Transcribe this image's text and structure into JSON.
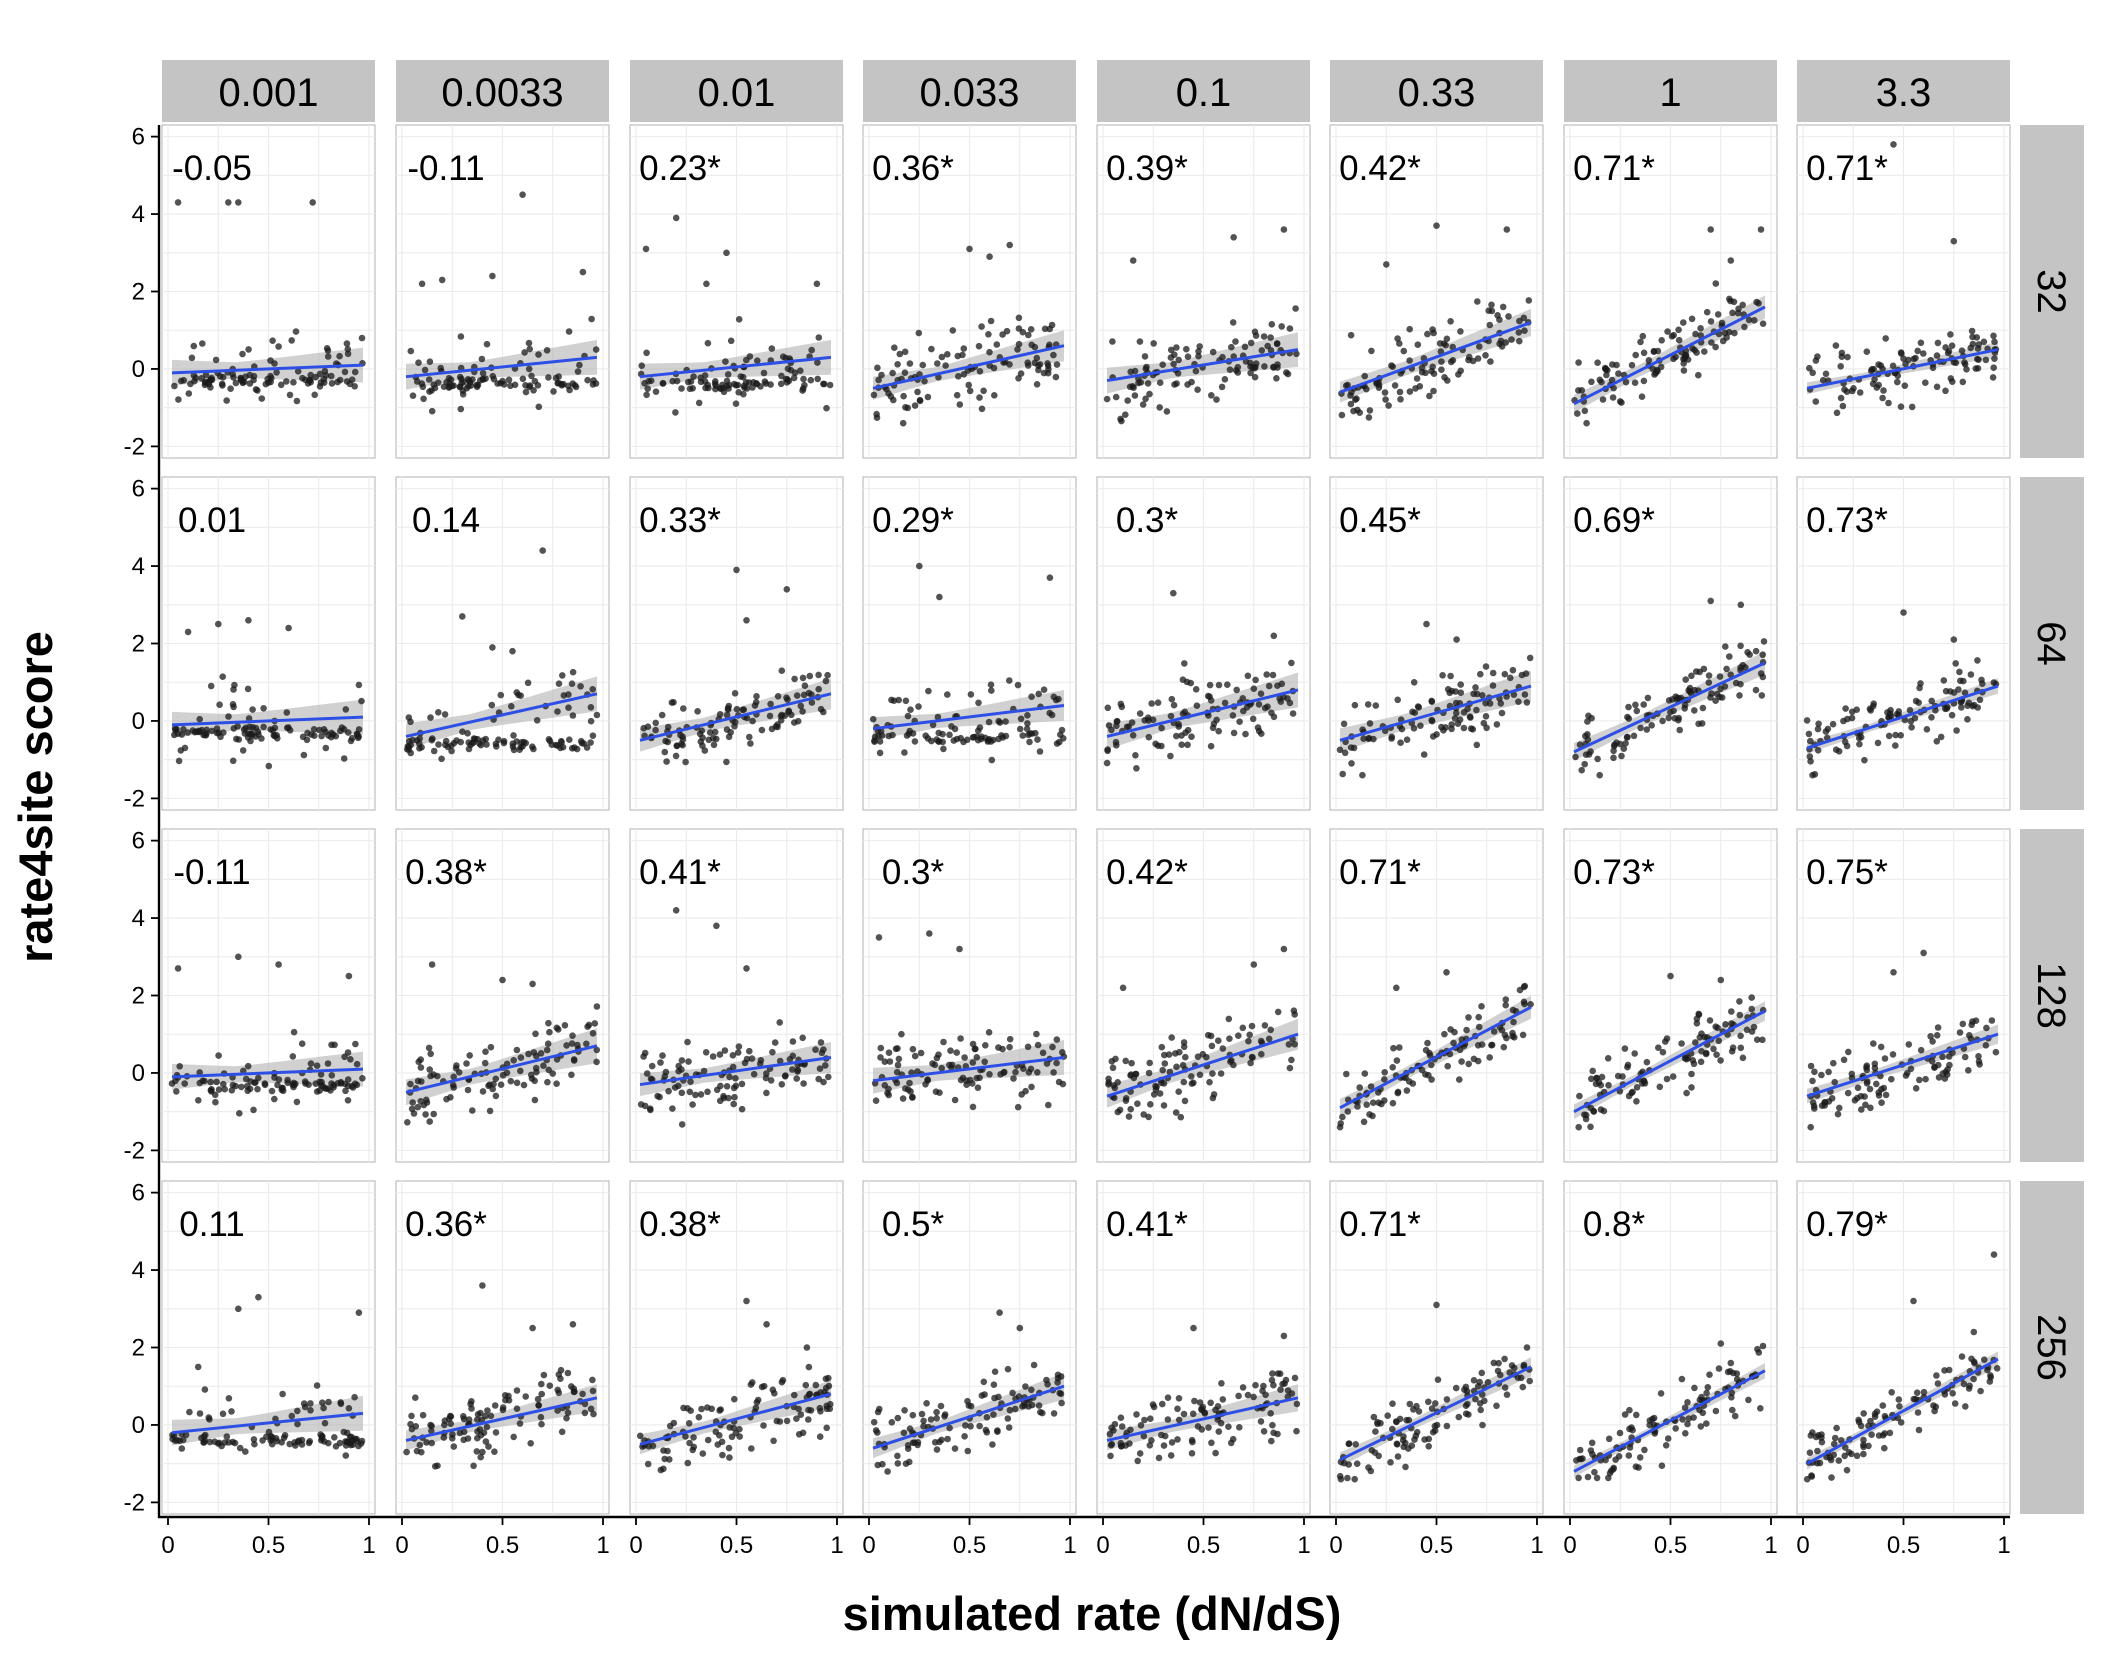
{
  "chart_data": {
    "type": "scatter",
    "facets": "grid",
    "xlabel": "simulated rate (dN/dS)",
    "ylabel": "rate4site score",
    "xlim": [
      0,
      1
    ],
    "ylim": [
      -2.3,
      6.3
    ],
    "xticks": [
      0,
      0.5,
      1
    ],
    "xtick_labels": [
      "0",
      "0.5",
      "1"
    ],
    "yticks": [
      -2,
      0,
      2,
      4,
      6
    ],
    "ytick_labels": [
      "-2",
      "0",
      "2",
      "4",
      "6"
    ],
    "col_strips": [
      "0.001",
      "0.0033",
      "0.01",
      "0.033",
      "0.1",
      "0.33",
      "1",
      "3.3"
    ],
    "row_strips": [
      "32",
      "64",
      "128",
      "256"
    ],
    "correlations": [
      [
        "-0.05",
        "-0.11",
        "0.23*",
        "0.36*",
        "0.39*",
        "0.42*",
        "0.71*",
        "0.71*"
      ],
      [
        "0.01",
        "0.14",
        "0.33*",
        "0.29*",
        "0.3*",
        "0.45*",
        "0.69*",
        "0.73*"
      ],
      [
        "-0.11",
        "0.38*",
        "0.41*",
        "0.3*",
        "0.42*",
        "0.71*",
        "0.73*",
        "0.75*"
      ],
      [
        "0.11",
        "0.36*",
        "0.38*",
        "0.5*",
        "0.41*",
        "0.71*",
        "0.8*",
        "0.79*"
      ]
    ],
    "fit_lines": [
      [
        [
          [
            0.02,
            -0.1
          ],
          [
            0.97,
            0.1
          ]
        ],
        [
          [
            0.02,
            -0.2
          ],
          [
            0.97,
            0.3
          ]
        ],
        [
          [
            0.02,
            -0.2
          ],
          [
            0.97,
            0.3
          ]
        ],
        [
          [
            0.02,
            -0.5
          ],
          [
            0.97,
            0.6
          ]
        ],
        [
          [
            0.02,
            -0.3
          ],
          [
            0.97,
            0.5
          ]
        ],
        [
          [
            0.02,
            -0.6
          ],
          [
            0.97,
            1.2
          ]
        ],
        [
          [
            0.02,
            -0.9
          ],
          [
            0.97,
            1.6
          ]
        ],
        [
          [
            0.02,
            -0.5
          ],
          [
            0.97,
            0.5
          ]
        ]
      ],
      [
        [
          [
            0.02,
            -0.1
          ],
          [
            0.97,
            0.1
          ]
        ],
        [
          [
            0.02,
            -0.4
          ],
          [
            0.97,
            0.7
          ]
        ],
        [
          [
            0.02,
            -0.5
          ],
          [
            0.97,
            0.7
          ]
        ],
        [
          [
            0.02,
            -0.2
          ],
          [
            0.97,
            0.4
          ]
        ],
        [
          [
            0.02,
            -0.4
          ],
          [
            0.97,
            0.8
          ]
        ],
        [
          [
            0.02,
            -0.5
          ],
          [
            0.97,
            0.9
          ]
        ],
        [
          [
            0.02,
            -0.8
          ],
          [
            0.97,
            1.5
          ]
        ],
        [
          [
            0.02,
            -0.7
          ],
          [
            0.97,
            0.9
          ]
        ]
      ],
      [
        [
          [
            0.02,
            -0.1
          ],
          [
            0.97,
            0.1
          ]
        ],
        [
          [
            0.02,
            -0.5
          ],
          [
            0.97,
            0.7
          ]
        ],
        [
          [
            0.02,
            -0.3
          ],
          [
            0.97,
            0.4
          ]
        ],
        [
          [
            0.02,
            -0.2
          ],
          [
            0.97,
            0.4
          ]
        ],
        [
          [
            0.02,
            -0.6
          ],
          [
            0.97,
            1.0
          ]
        ],
        [
          [
            0.02,
            -0.9
          ],
          [
            0.97,
            1.7
          ]
        ],
        [
          [
            0.02,
            -1.0
          ],
          [
            0.97,
            1.6
          ]
        ],
        [
          [
            0.02,
            -0.6
          ],
          [
            0.97,
            1.0
          ]
        ]
      ],
      [
        [
          [
            0.02,
            -0.2
          ],
          [
            0.97,
            0.3
          ]
        ],
        [
          [
            0.02,
            -0.4
          ],
          [
            0.97,
            0.7
          ]
        ],
        [
          [
            0.02,
            -0.5
          ],
          [
            0.97,
            0.8
          ]
        ],
        [
          [
            0.02,
            -0.6
          ],
          [
            0.97,
            1.0
          ]
        ],
        [
          [
            0.02,
            -0.4
          ],
          [
            0.97,
            0.7
          ]
        ],
        [
          [
            0.02,
            -0.9
          ],
          [
            0.97,
            1.5
          ]
        ],
        [
          [
            0.02,
            -1.2
          ],
          [
            0.97,
            1.4
          ]
        ],
        [
          [
            0.02,
            -1.0
          ],
          [
            0.97,
            1.7
          ]
        ]
      ]
    ],
    "ci_halfwidth": [
      [
        [
          0.2,
          0.45
        ],
        [
          0.2,
          0.45
        ],
        [
          0.2,
          0.45
        ],
        [
          0.18,
          0.4
        ],
        [
          0.2,
          0.45
        ],
        [
          0.18,
          0.35
        ],
        [
          0.15,
          0.3
        ],
        [
          0.1,
          0.2
        ]
      ],
      [
        [
          0.2,
          0.45
        ],
        [
          0.2,
          0.45
        ],
        [
          0.18,
          0.4
        ],
        [
          0.18,
          0.4
        ],
        [
          0.2,
          0.45
        ],
        [
          0.2,
          0.4
        ],
        [
          0.15,
          0.3
        ],
        [
          0.1,
          0.2
        ]
      ],
      [
        [
          0.2,
          0.45
        ],
        [
          0.2,
          0.45
        ],
        [
          0.18,
          0.4
        ],
        [
          0.2,
          0.45
        ],
        [
          0.18,
          0.4
        ],
        [
          0.15,
          0.3
        ],
        [
          0.12,
          0.25
        ],
        [
          0.12,
          0.25
        ]
      ],
      [
        [
          0.2,
          0.45
        ],
        [
          0.15,
          0.35
        ],
        [
          0.15,
          0.35
        ],
        [
          0.15,
          0.35
        ],
        [
          0.15,
          0.35
        ],
        [
          0.12,
          0.25
        ],
        [
          0.1,
          0.2
        ],
        [
          0.1,
          0.2
        ]
      ]
    ],
    "outliers": [
      [
        [
          [
            0.05,
            4.3
          ],
          [
            0.3,
            4.3
          ],
          [
            0.35,
            4.3
          ],
          [
            0.72,
            4.3
          ]
        ],
        [
          [
            0.6,
            4.5
          ],
          [
            0.1,
            2.2
          ],
          [
            0.2,
            2.3
          ],
          [
            0.45,
            2.4
          ],
          [
            0.9,
            2.5
          ]
        ],
        [
          [
            0.2,
            3.9
          ],
          [
            0.05,
            3.1
          ],
          [
            0.45,
            3.0
          ],
          [
            0.35,
            2.2
          ],
          [
            0.9,
            2.2
          ]
        ],
        [
          [
            0.5,
            3.1
          ],
          [
            0.6,
            2.9
          ],
          [
            0.7,
            3.2
          ]
        ],
        [
          [
            0.15,
            2.8
          ],
          [
            0.65,
            3.4
          ],
          [
            0.9,
            3.6
          ]
        ],
        [
          [
            0.5,
            3.7
          ],
          [
            0.85,
            3.6
          ],
          [
            0.25,
            2.7
          ]
        ],
        [
          [
            0.7,
            3.6
          ],
          [
            0.95,
            3.6
          ],
          [
            0.8,
            2.8
          ]
        ],
        [
          [
            0.45,
            5.8
          ],
          [
            0.75,
            3.3
          ]
        ]
      ],
      [
        [
          [
            0.25,
            2.5
          ],
          [
            0.4,
            2.6
          ],
          [
            0.6,
            2.4
          ],
          [
            0.1,
            2.3
          ]
        ],
        [
          [
            0.7,
            4.4
          ],
          [
            0.3,
            2.7
          ],
          [
            0.45,
            1.9
          ],
          [
            0.55,
            1.8
          ]
        ],
        [
          [
            0.5,
            3.9
          ],
          [
            0.75,
            3.4
          ],
          [
            0.55,
            2.6
          ]
        ],
        [
          [
            0.25,
            4.0
          ],
          [
            0.9,
            3.7
          ],
          [
            0.35,
            3.2
          ]
        ],
        [
          [
            0.35,
            3.3
          ],
          [
            0.85,
            2.2
          ]
        ],
        [
          [
            0.45,
            2.5
          ],
          [
            0.6,
            2.1
          ]
        ],
        [
          [
            0.7,
            3.1
          ],
          [
            0.85,
            3.0
          ]
        ],
        [
          [
            0.5,
            2.8
          ],
          [
            0.75,
            2.1
          ]
        ]
      ],
      [
        [
          [
            0.35,
            3.0
          ],
          [
            0.55,
            2.8
          ],
          [
            0.05,
            2.7
          ],
          [
            0.9,
            2.5
          ]
        ],
        [
          [
            0.15,
            2.8
          ],
          [
            0.5,
            2.4
          ],
          [
            0.65,
            2.3
          ]
        ],
        [
          [
            0.2,
            4.2
          ],
          [
            0.55,
            2.7
          ],
          [
            0.4,
            3.8
          ]
        ],
        [
          [
            0.05,
            3.5
          ],
          [
            0.3,
            3.6
          ],
          [
            0.45,
            3.2
          ]
        ],
        [
          [
            0.9,
            3.2
          ],
          [
            0.75,
            2.8
          ],
          [
            0.1,
            2.2
          ]
        ],
        [
          [
            0.55,
            2.6
          ],
          [
            0.3,
            2.2
          ]
        ],
        [
          [
            0.5,
            2.5
          ],
          [
            0.75,
            2.4
          ]
        ],
        [
          [
            0.6,
            3.1
          ],
          [
            0.45,
            2.6
          ]
        ]
      ],
      [
        [
          [
            0.45,
            3.3
          ],
          [
            0.35,
            3.0
          ],
          [
            0.95,
            2.9
          ],
          [
            0.15,
            1.5
          ]
        ],
        [
          [
            0.4,
            3.6
          ],
          [
            0.85,
            2.6
          ],
          [
            0.65,
            2.5
          ]
        ],
        [
          [
            0.55,
            3.2
          ],
          [
            0.65,
            2.6
          ],
          [
            0.85,
            2.0
          ]
        ],
        [
          [
            0.65,
            2.9
          ],
          [
            0.75,
            2.5
          ]
        ],
        [
          [
            0.45,
            2.5
          ],
          [
            0.9,
            2.3
          ]
        ],
        [
          [
            0.5,
            3.1
          ],
          [
            0.95,
            2.0
          ]
        ],
        [
          [
            0.75,
            2.1
          ],
          [
            0.8,
            1.6
          ]
        ],
        [
          [
            0.55,
            3.2
          ],
          [
            0.95,
            4.4
          ],
          [
            0.85,
            2.4
          ]
        ]
      ]
    ]
  },
  "colors": {
    "strip": "#c4c4c4",
    "panel_border": "#bdbdbd",
    "grid": "#ebebeb",
    "fit_line": "#2d4fe6",
    "ci_band": "#b3b3b3",
    "points": "#1a1a1a"
  }
}
